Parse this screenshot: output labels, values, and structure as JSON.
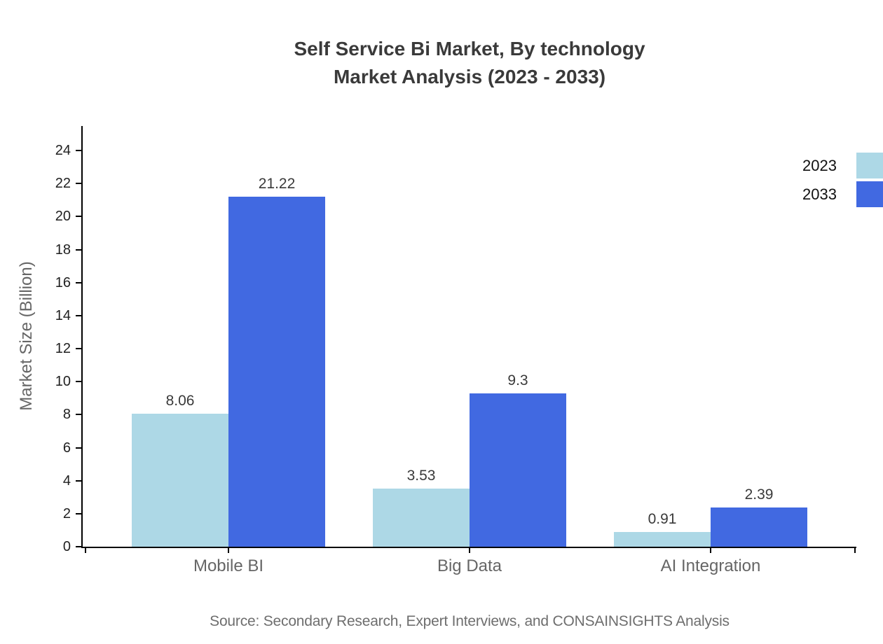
{
  "title": {
    "line1": "Self Service Bi Market, By technology",
    "line2": "Market Analysis (2023 - 2033)"
  },
  "source_note": "Source: Secondary Research, Expert Interviews, and CONSAINSIGHTS Analysis",
  "chart_data": {
    "type": "bar",
    "title": "Self Service Bi Market, By technology Market Analysis (2023 - 2033)",
    "categories": [
      "Mobile BI",
      "Big Data",
      "AI Integration"
    ],
    "series": [
      {
        "name": "2023",
        "color": "#ADD8E6",
        "values": [
          8.06,
          3.53,
          0.91
        ]
      },
      {
        "name": "2033",
        "color": "#4169E1",
        "values": [
          21.22,
          9.3,
          2.39
        ]
      }
    ],
    "ylabel": "Market Size (Billion)",
    "xlabel": "",
    "ylim": [
      0,
      24
    ],
    "yticks": [
      0,
      2,
      4,
      6,
      8,
      10,
      12,
      14,
      16,
      18,
      20,
      22,
      24
    ],
    "grid": false,
    "legend_position": "top-right",
    "value_labels_shown": true
  },
  "colors": {
    "axis": "#000000",
    "title_text": "#3a3a3a",
    "tick_label": "#1f1f1f",
    "category_label": "#666666",
    "value_label": "#3a3a3a",
    "source_text": "#6e6e6e",
    "legend_text": "#111111",
    "background": "#ffffff"
  }
}
